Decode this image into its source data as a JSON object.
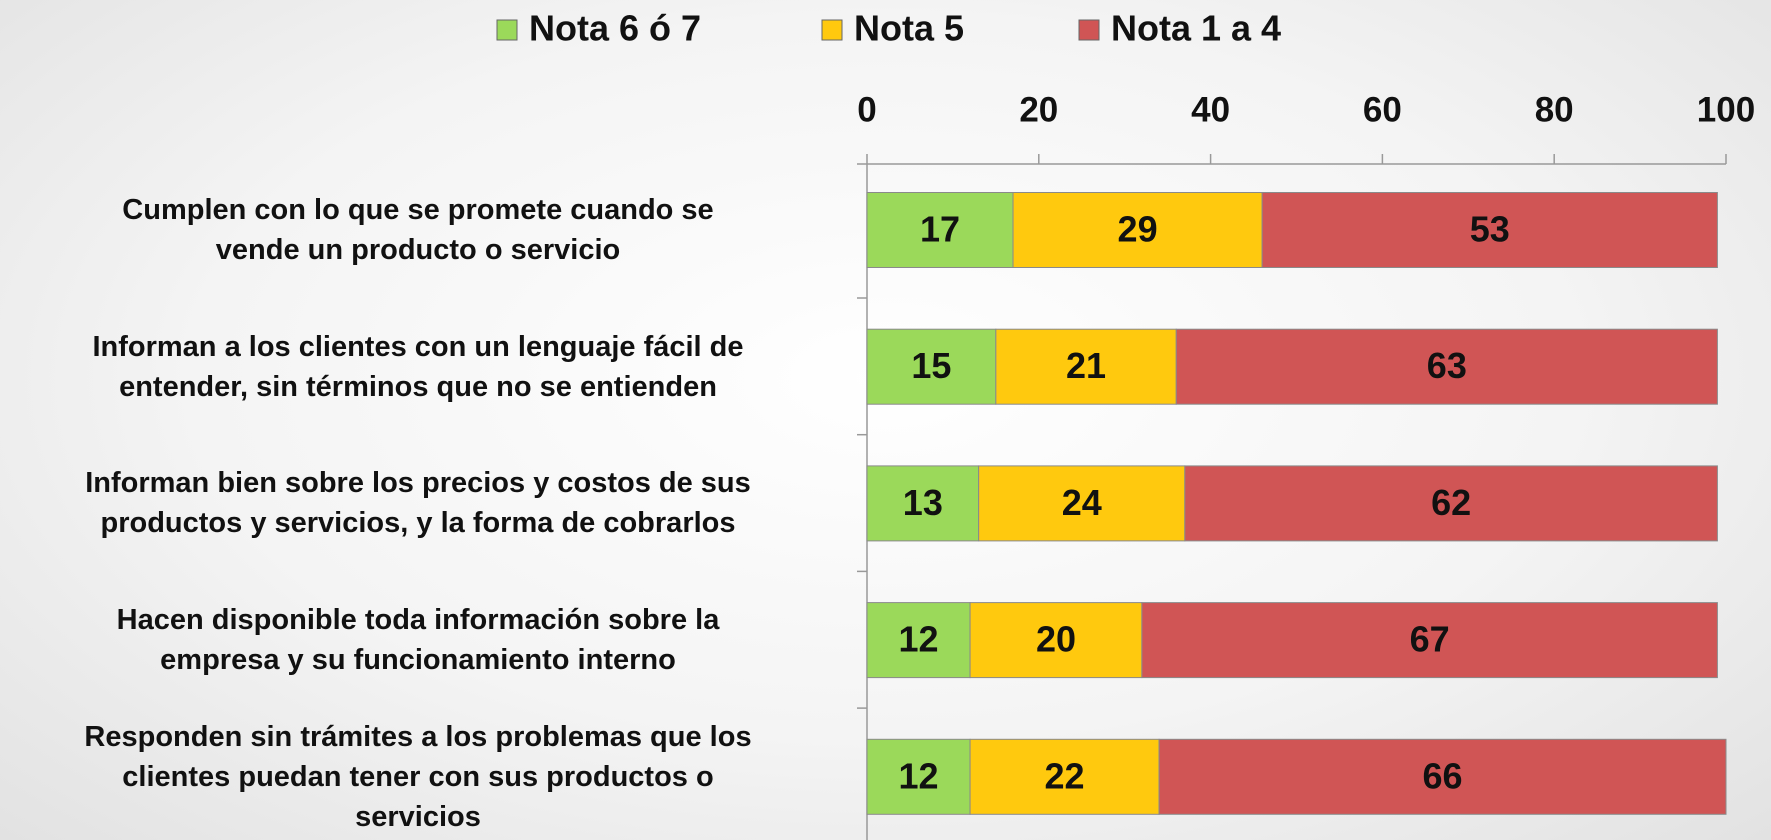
{
  "chart_data": {
    "type": "stacked-bar-horizontal",
    "categories": [
      "Cumplen con lo que se promete cuando se\nvende un producto o servicio",
      "Informan a los clientes con un lenguaje fácil de\nentender, sin términos que no se entienden",
      "Informan bien sobre los precios y costos de sus\nproductos y servicios, y la forma de cobrarlos",
      "Hacen disponible toda información sobre la\nempresa y su funcionamiento interno",
      "Responden sin trámites a los problemas que los\nclientes puedan tener con sus productos o\nservicios"
    ],
    "series": [
      {
        "name": "Nota 6 ó 7",
        "color": "#9bd95a",
        "values": [
          17,
          15,
          13,
          12,
          12
        ]
      },
      {
        "name": "Nota 5",
        "color": "#ffc90e",
        "values": [
          29,
          21,
          24,
          20,
          22
        ]
      },
      {
        "name": "Nota 1 a 4",
        "color": "#d05555",
        "values": [
          53,
          63,
          62,
          67,
          66
        ]
      }
    ],
    "xlim": [
      0,
      100
    ],
    "xticks": [
      0,
      20,
      40,
      60,
      80,
      100
    ],
    "legend": "top"
  }
}
